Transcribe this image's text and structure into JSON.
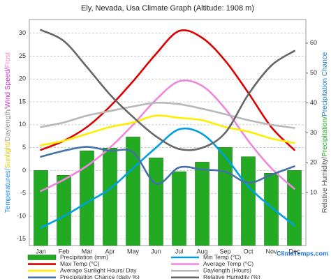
{
  "chart_data": {
    "type": "combo",
    "title": "Ely, Nevada, Usa Climate Graph (Altitude: 1908 m)",
    "watermark": "ClimaTemps.com",
    "categories": [
      "Jan",
      "Feb",
      "Mar",
      "Apr",
      "May",
      "Jun",
      "Jul",
      "Aug",
      "Sep",
      "Oct",
      "Nov",
      "Dec"
    ],
    "y_label_parts": [
      {
        "text": "Temperatures/",
        "color": "#1e90ff"
      },
      {
        "text": "Sunlight/",
        "color": "#e6c800"
      },
      {
        "text": "Daylength/",
        "color": "#999999"
      },
      {
        "text": "Wind Speed/",
        "color": "#cc33cc"
      },
      {
        "text": "Frost",
        "color": "#ff88cc"
      }
    ],
    "y2_label_parts": [
      {
        "text": "Relative Humidity/",
        "color": "#555555"
      },
      {
        "text": "Precipitation/",
        "color": "#22aa22"
      },
      {
        "text": "Precipitation Chance",
        "color": "#1e7fc8"
      }
    ],
    "ylim": [
      -16.4,
      33
    ],
    "yticks": [
      -15,
      -10,
      -5,
      0,
      5,
      10,
      15,
      20,
      25,
      30
    ],
    "y2lim": [
      -7.7,
      67.9
    ],
    "y2ticks": [
      10,
      20,
      30,
      40,
      50,
      60
    ],
    "grid": true,
    "series": [
      {
        "name": "Precipitation (mm)",
        "mark": "bar",
        "axis": "y2",
        "color": "#22aa22",
        "values": [
          17.4,
          15.8,
          24,
          24.9,
          28.6,
          21.6,
          17,
          20.2,
          25.1,
          22,
          16.5,
          17.4
        ]
      },
      {
        "name": "Min Temp (°C)",
        "mark": "line",
        "color": "#00a0e0",
        "values": [
          -12.5,
          -10,
          -7,
          -4,
          0.5,
          5,
          9,
          8,
          3,
          -3.5,
          -8,
          -12
        ]
      },
      {
        "name": "Max Temp (°C)",
        "mark": "line",
        "color": "#dd0000",
        "values": [
          4.5,
          6.5,
          9.5,
          14,
          19.5,
          25.5,
          30.5,
          29,
          24,
          17,
          9.5,
          4.5
        ]
      },
      {
        "name": "Average Temp (°C)",
        "mark": "line",
        "color": "#ee88dd",
        "values": [
          -4.5,
          -2,
          1,
          5,
          10,
          15.5,
          19.5,
          18.5,
          13.5,
          6.5,
          0.5,
          -4
        ]
      },
      {
        "name": "Average Sunlight Hours/ Day",
        "mark": "line",
        "color": "#ffee00",
        "values": [
          5.5,
          6.5,
          8,
          9.5,
          10.5,
          12,
          11.5,
          11,
          9.5,
          8.5,
          7,
          6
        ]
      },
      {
        "name": "Daylength (Hours)",
        "mark": "line",
        "color": "#b8b8b8",
        "values": [
          9.5,
          10.5,
          12,
          13,
          14,
          14.8,
          14.5,
          13.5,
          12.3,
          11,
          10,
          9.3
        ]
      },
      {
        "name": "Precipitation Chance (daily %)",
        "mark": "line",
        "axis": "y2",
        "color": "#4472a8",
        "values": [
          22,
          24,
          25.3,
          24,
          23.5,
          13,
          18.4,
          17.7,
          17,
          13.3,
          16,
          18.8
        ]
      },
      {
        "name": "Relative Humidity (%)",
        "mark": "line",
        "axis": "y2",
        "color": "#666666",
        "values": [
          64.4,
          60.7,
          52,
          42.8,
          35.3,
          28.8,
          24.6,
          25,
          30,
          42.8,
          52.5,
          57.4
        ]
      }
    ]
  }
}
